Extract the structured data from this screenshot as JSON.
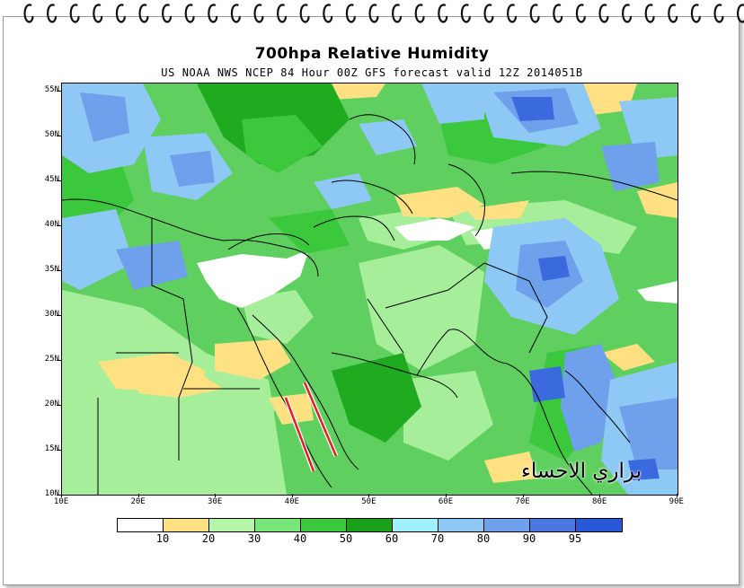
{
  "title": "700hpa Relative Humidity",
  "subtitle": "US NOAA NWS NCEP 84 Hour 00Z GFS forecast valid 12Z 2014051B",
  "watermark": "براري الاحساء",
  "lat_ticks": [
    "55N",
    "50N",
    "45N",
    "40N",
    "35N",
    "30N",
    "25N",
    "20N",
    "15N",
    "10N"
  ],
  "lon_ticks": [
    "10E",
    "20E",
    "30E",
    "40E",
    "50E",
    "60E",
    "70E",
    "80E",
    "90E"
  ],
  "colorbar": {
    "labels": [
      "10",
      "20",
      "30",
      "40",
      "50",
      "60",
      "70",
      "80",
      "90",
      "95"
    ],
    "colors": [
      "#ffffff",
      "#ffe082",
      "#b4f5a8",
      "#78e678",
      "#3cc83c",
      "#18a018",
      "#a0f0ff",
      "#8ec8f5",
      "#6ea0ec",
      "#4a78e0",
      "#2858d8"
    ]
  },
  "colors": {
    "land_green": "#5fd05f",
    "light_green": "#a6ee9a",
    "dark_green": "#1faa1f",
    "yellow": "#ffe082",
    "blue": "#6ea0ec",
    "dark_blue": "#3a6ade",
    "arrow_red": "#e02020"
  }
}
